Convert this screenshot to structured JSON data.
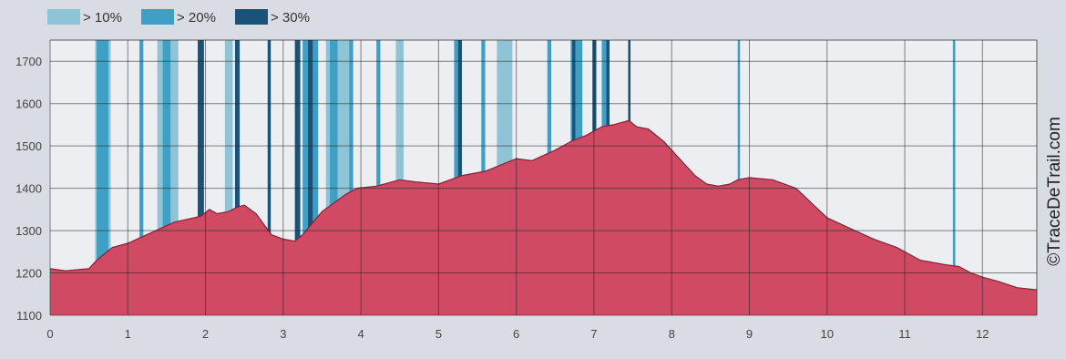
{
  "chart_data": {
    "type": "area",
    "xlim": [
      0,
      12.7
    ],
    "ylim": [
      1100,
      1750
    ],
    "x_ticks": [
      0,
      1,
      2,
      3,
      4,
      5,
      6,
      7,
      8,
      9,
      10,
      11,
      12
    ],
    "y_ticks": [
      1100,
      1200,
      1300,
      1400,
      1500,
      1600,
      1700
    ],
    "grid": true,
    "legend_position": "top-left",
    "legend": [
      {
        "label": "> 10%",
        "color": "#8fc4d6"
      },
      {
        "label": "> 20%",
        "color": "#3f9fc4"
      },
      {
        "label": "> 30%",
        "color": "#1a5278"
      }
    ],
    "credit": "©TraceDeTrail.com",
    "colors": {
      "profile": "#cf4a62",
      "outline": "#8a1f35",
      "plot_bg": "#eceef2",
      "grid": "#222"
    },
    "profile": {
      "x": [
        0,
        0.2,
        0.5,
        0.6,
        0.8,
        1.0,
        1.3,
        1.6,
        1.85,
        1.95,
        2.05,
        2.15,
        2.3,
        2.4,
        2.5,
        2.65,
        2.85,
        3.0,
        3.15,
        3.25,
        3.5,
        3.8,
        3.95,
        4.2,
        4.5,
        4.7,
        5.0,
        5.3,
        5.6,
        5.8,
        6.0,
        6.2,
        6.5,
        6.7,
        6.9,
        7.1,
        7.25,
        7.35,
        7.45,
        7.55,
        7.7,
        7.9,
        8.1,
        8.3,
        8.45,
        8.6,
        8.75,
        8.85,
        9.0,
        9.3,
        9.6,
        9.8,
        10.0,
        10.3,
        10.6,
        10.9,
        11.2,
        11.5,
        11.7,
        11.85,
        12.0,
        12.2,
        12.45,
        12.7
      ],
      "y": [
        1210,
        1205,
        1210,
        1230,
        1260,
        1270,
        1295,
        1320,
        1330,
        1335,
        1350,
        1340,
        1345,
        1355,
        1360,
        1340,
        1290,
        1280,
        1275,
        1290,
        1345,
        1385,
        1400,
        1405,
        1420,
        1415,
        1410,
        1430,
        1440,
        1455,
        1470,
        1465,
        1490,
        1510,
        1525,
        1545,
        1550,
        1555,
        1560,
        1545,
        1540,
        1510,
        1470,
        1430,
        1410,
        1405,
        1410,
        1420,
        1425,
        1420,
        1400,
        1365,
        1330,
        1305,
        1280,
        1260,
        1230,
        1220,
        1215,
        1200,
        1190,
        1180,
        1165,
        1160
      ]
    },
    "steep_segments": [
      {
        "class": "> 10%",
        "x": [
          0.58,
          0.78
        ]
      },
      {
        "class": "> 10%",
        "x": [
          1.38,
          1.65
        ]
      },
      {
        "class": "> 10%",
        "x": [
          2.25,
          2.35
        ]
      },
      {
        "class": "> 10%",
        "x": [
          3.55,
          3.9
        ]
      },
      {
        "class": "> 10%",
        "x": [
          4.45,
          4.55
        ]
      },
      {
        "class": "> 10%",
        "x": [
          5.75,
          5.95
        ]
      },
      {
        "class": "> 20%",
        "x": [
          0.6,
          0.75
        ]
      },
      {
        "class": "> 20%",
        "x": [
          1.15,
          1.2
        ]
      },
      {
        "class": "> 20%",
        "x": [
          1.45,
          1.55
        ]
      },
      {
        "class": "> 20%",
        "x": [
          3.25,
          3.45
        ]
      },
      {
        "class": "> 20%",
        "x": [
          3.6,
          3.7
        ]
      },
      {
        "class": "> 20%",
        "x": [
          3.85,
          3.9
        ]
      },
      {
        "class": "> 20%",
        "x": [
          4.2,
          4.25
        ]
      },
      {
        "class": "> 20%",
        "x": [
          5.2,
          5.25
        ]
      },
      {
        "class": "> 20%",
        "x": [
          5.55,
          5.6
        ]
      },
      {
        "class": "> 20%",
        "x": [
          6.4,
          6.45
        ]
      },
      {
        "class": "> 20%",
        "x": [
          6.7,
          6.85
        ]
      },
      {
        "class": "> 20%",
        "x": [
          7.1,
          7.2
        ]
      },
      {
        "class": "> 20%",
        "x": [
          8.85,
          8.88
        ]
      },
      {
        "class": "> 20%",
        "x": [
          11.62,
          11.65
        ]
      },
      {
        "class": "> 30%",
        "x": [
          1.9,
          1.98
        ]
      },
      {
        "class": "> 30%",
        "x": [
          2.38,
          2.44
        ]
      },
      {
        "class": "> 30%",
        "x": [
          2.8,
          2.84
        ]
      },
      {
        "class": "> 30%",
        "x": [
          3.15,
          3.22
        ]
      },
      {
        "class": "> 30%",
        "x": [
          3.32,
          3.38
        ]
      },
      {
        "class": "> 30%",
        "x": [
          5.25,
          5.3
        ]
      },
      {
        "class": "> 30%",
        "x": [
          6.72,
          6.76
        ]
      },
      {
        "class": "> 30%",
        "x": [
          6.98,
          7.03
        ]
      },
      {
        "class": "> 30%",
        "x": [
          7.16,
          7.2
        ]
      },
      {
        "class": "> 30%",
        "x": [
          7.44,
          7.47
        ]
      }
    ]
  }
}
